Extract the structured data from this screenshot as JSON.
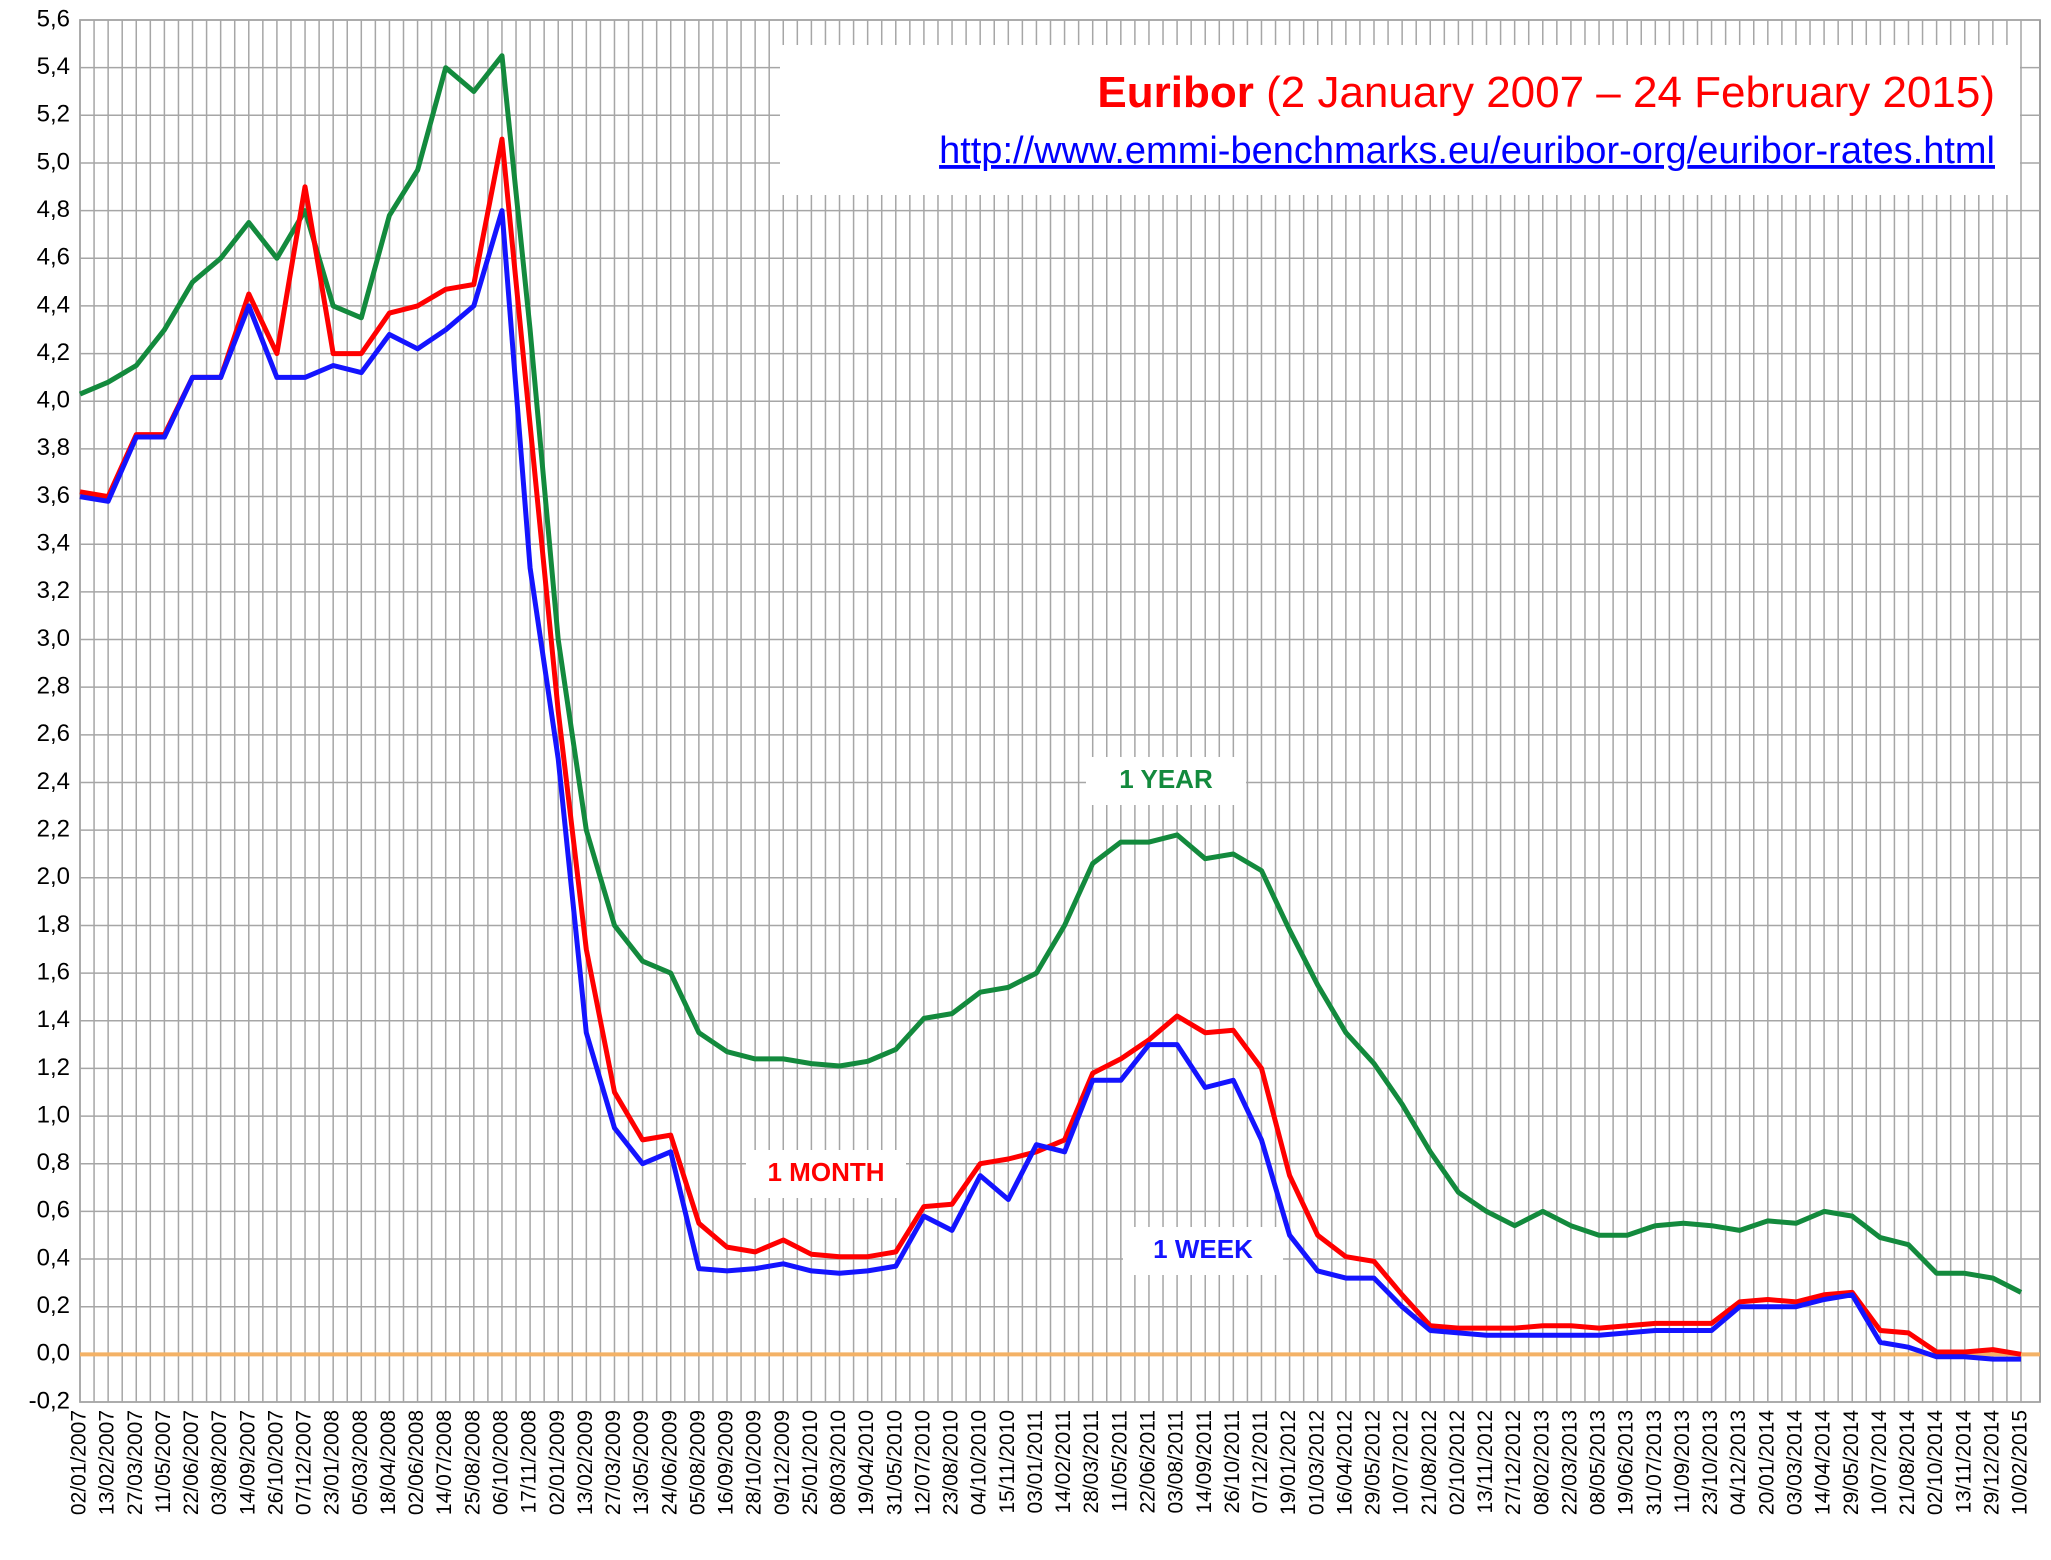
{
  "chart_data": {
    "type": "line",
    "title": "Euribor",
    "subtitle": "(2 January 2007 – 24 February 2015)",
    "link": "http://www.emmi-benchmarks.eu/euribor-org/euribor-rates.html",
    "annotations": [
      "1 YEAR",
      "1 MONTH",
      "1 WEEK"
    ],
    "grid": true,
    "categories": [
      "02/01/2007",
      "13/02/2007",
      "27/03/2007",
      "11/05/2007",
      "22/06/2007",
      "03/08/2007",
      "14/09/2007",
      "26/10/2007",
      "07/12/2007",
      "23/01/2008",
      "05/03/2008",
      "18/04/2008",
      "02/06/2008",
      "14/07/2008",
      "25/08/2008",
      "06/10/2008",
      "17/11/2008",
      "02/01/2009",
      "13/02/2009",
      "27/03/2009",
      "13/05/2009",
      "24/06/2009",
      "05/08/2009",
      "16/09/2009",
      "28/10/2009",
      "09/12/2009",
      "25/01/2010",
      "08/03/2010",
      "19/04/2010",
      "31/05/2010",
      "12/07/2010",
      "23/08/2010",
      "04/10/2010",
      "15/11/2010",
      "03/01/2011",
      "14/02/2011",
      "28/03/2011",
      "11/05/2011",
      "22/06/2011",
      "03/08/2011",
      "14/09/2011",
      "26/10/2011",
      "07/12/2011",
      "19/01/2012",
      "01/03/2012",
      "16/04/2012",
      "29/05/2012",
      "10/07/2012",
      "21/08/2012",
      "02/10/2012",
      "13/11/2012",
      "27/12/2012",
      "08/02/2013",
      "22/03/2013",
      "08/05/2013",
      "19/06/2013",
      "31/07/2013",
      "11/09/2013",
      "23/10/2013",
      "04/12/2013",
      "20/01/2014",
      "03/03/2014",
      "14/04/2014",
      "29/05/2014",
      "10/07/2014",
      "21/08/2014",
      "02/10/2014",
      "13/11/2014",
      "29/12/2014",
      "10/02/2015"
    ],
    "series": [
      {
        "name": "1 YEAR",
        "color": "#138a3d",
        "values": [
          4.03,
          4.08,
          4.15,
          4.3,
          4.5,
          4.6,
          4.75,
          4.6,
          4.8,
          4.4,
          4.35,
          4.78,
          4.97,
          5.4,
          5.3,
          5.45,
          4.3,
          3.0,
          2.2,
          1.8,
          1.65,
          1.6,
          1.35,
          1.27,
          1.24,
          1.24,
          1.22,
          1.21,
          1.23,
          1.28,
          1.41,
          1.43,
          1.52,
          1.54,
          1.6,
          1.8,
          2.06,
          2.15,
          2.15,
          2.18,
          2.08,
          2.1,
          2.03,
          1.78,
          1.55,
          1.35,
          1.22,
          1.05,
          0.85,
          0.68,
          0.6,
          0.54,
          0.6,
          0.54,
          0.5,
          0.5,
          0.54,
          0.55,
          0.54,
          0.52,
          0.56,
          0.55,
          0.6,
          0.58,
          0.49,
          0.46,
          0.34,
          0.34,
          0.32,
          0.26
        ]
      },
      {
        "name": "1 MONTH",
        "color": "#ff0000",
        "values": [
          3.62,
          3.6,
          3.86,
          3.86,
          4.1,
          4.1,
          4.45,
          4.2,
          4.9,
          4.2,
          4.2,
          4.37,
          4.4,
          4.47,
          4.49,
          5.1,
          3.9,
          2.7,
          1.7,
          1.1,
          0.9,
          0.92,
          0.55,
          0.45,
          0.43,
          0.48,
          0.42,
          0.41,
          0.41,
          0.43,
          0.62,
          0.63,
          0.8,
          0.82,
          0.85,
          0.9,
          1.18,
          1.24,
          1.32,
          1.42,
          1.35,
          1.36,
          1.2,
          0.75,
          0.5,
          0.41,
          0.39,
          0.25,
          0.12,
          0.11,
          0.11,
          0.11,
          0.12,
          0.12,
          0.11,
          0.12,
          0.13,
          0.13,
          0.13,
          0.22,
          0.23,
          0.22,
          0.25,
          0.26,
          0.1,
          0.09,
          0.01,
          0.01,
          0.02,
          0.0
        ]
      },
      {
        "name": "1 WEEK",
        "color": "#1414ff",
        "values": [
          3.6,
          3.58,
          3.85,
          3.85,
          4.1,
          4.1,
          4.4,
          4.1,
          4.1,
          4.15,
          4.12,
          4.28,
          4.22,
          4.3,
          4.4,
          4.8,
          3.3,
          2.5,
          1.35,
          0.95,
          0.8,
          0.85,
          0.36,
          0.35,
          0.36,
          0.38,
          0.35,
          0.34,
          0.35,
          0.37,
          0.58,
          0.52,
          0.75,
          0.65,
          0.88,
          0.85,
          1.15,
          1.15,
          1.3,
          1.3,
          1.12,
          1.15,
          0.9,
          0.5,
          0.35,
          0.32,
          0.32,
          0.2,
          0.1,
          0.09,
          0.08,
          0.08,
          0.08,
          0.08,
          0.08,
          0.09,
          0.1,
          0.1,
          0.1,
          0.2,
          0.2,
          0.2,
          0.23,
          0.25,
          0.05,
          0.03,
          -0.01,
          -0.01,
          -0.02,
          -0.02
        ]
      }
    ],
    "ylim": [
      -0.2,
      5.6
    ],
    "yticks": [
      {
        "value": -0.2,
        "label": "-0,2"
      },
      {
        "value": 0,
        "label": "0,0"
      },
      {
        "value": 0.2,
        "label": "0,2"
      },
      {
        "value": 0.4,
        "label": "0,4"
      },
      {
        "value": 0.6,
        "label": "0,6"
      },
      {
        "value": 0.8,
        "label": "0,8"
      },
      {
        "value": 1.0,
        "label": "1,0"
      },
      {
        "value": 1.2,
        "label": "1,2"
      },
      {
        "value": 1.4,
        "label": "1,4"
      },
      {
        "value": 1.6,
        "label": "1,6"
      },
      {
        "value": 1.8,
        "label": "1,8"
      },
      {
        "value": 2.0,
        "label": "2,0"
      },
      {
        "value": 2.2,
        "label": "2,2"
      },
      {
        "value": 2.4,
        "label": "2,4"
      },
      {
        "value": 2.6,
        "label": "2,6"
      },
      {
        "value": 2.8,
        "label": "2,8"
      },
      {
        "value": 3.0,
        "label": "3,0"
      },
      {
        "value": 3.2,
        "label": "3,2"
      },
      {
        "value": 3.4,
        "label": "3,4"
      },
      {
        "value": 3.6,
        "label": "3,6"
      },
      {
        "value": 3.8,
        "label": "3,8"
      },
      {
        "value": 4.0,
        "label": "4,0"
      },
      {
        "value": 4.2,
        "label": "4,2"
      },
      {
        "value": 4.4,
        "label": "4,4"
      },
      {
        "value": 4.6,
        "label": "4,6"
      },
      {
        "value": 4.8,
        "label": "4,8"
      },
      {
        "value": 5.0,
        "label": "5,0"
      },
      {
        "value": 5.2,
        "label": "5,2"
      },
      {
        "value": 5.4,
        "label": "5,4"
      },
      {
        "value": 5.6,
        "label": "5,6"
      }
    ],
    "zero_line_color": "#f4b266"
  }
}
